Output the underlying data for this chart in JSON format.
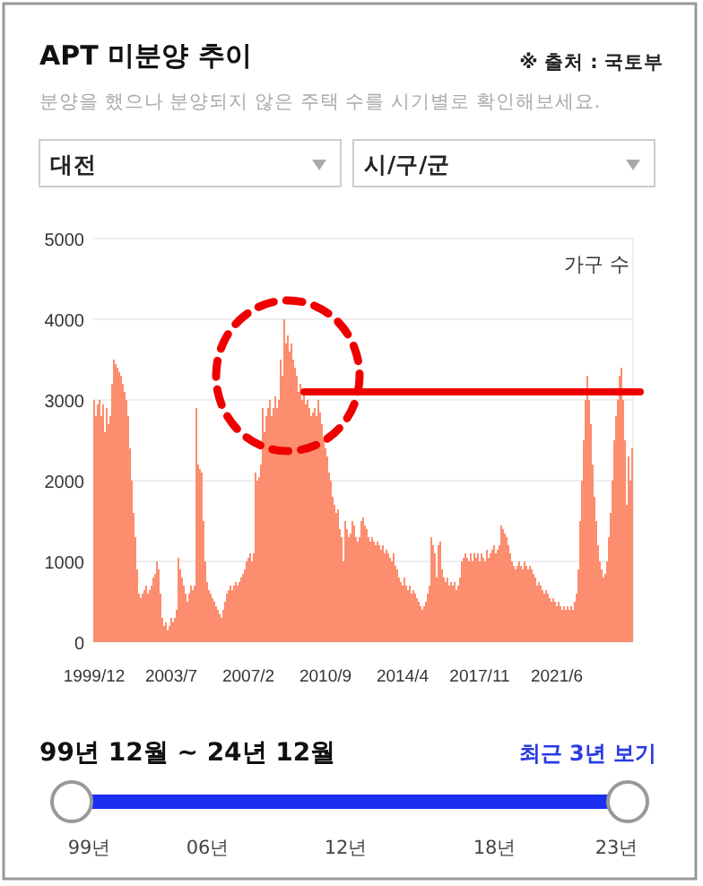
{
  "chart_data": {
    "type": "bar",
    "title": "APT 미분양 추이",
    "subtitle": "분양을 했으나 분양되지 않은 주택 수를 시기별로 확인해보세요.",
    "ylabel": "가구 수",
    "annotations": [
      "※ 출처 : 국토부",
      "대전",
      "시/구/군",
      "99년 12월 ~ 24년 12월",
      "최근 3년 보기",
      "99년",
      "06년",
      "12년",
      "18년",
      "23년"
    ],
    "categories": [
      "1999/12",
      null,
      null,
      null,
      null,
      null,
      null,
      null,
      null,
      null,
      null,
      null,
      null,
      null,
      null,
      null,
      null,
      null,
      null,
      null,
      null,
      null,
      null,
      null,
      null,
      null,
      null,
      null,
      null,
      null,
      null,
      null,
      null,
      null,
      null,
      null,
      null,
      null,
      null,
      null,
      null,
      null,
      null,
      "2003/7",
      null,
      null,
      null,
      null,
      null,
      null,
      null,
      null,
      null,
      null,
      null,
      null,
      null,
      null,
      null,
      null,
      null,
      null,
      null,
      null,
      null,
      null,
      null,
      null,
      null,
      null,
      null,
      null,
      null,
      null,
      null,
      null,
      null,
      null,
      null,
      null,
      null,
      null,
      null,
      null,
      null,
      null,
      "2007/2",
      null,
      null,
      null,
      null,
      null,
      null,
      null,
      null,
      null,
      null,
      null,
      null,
      null,
      null,
      null,
      null,
      null,
      null,
      null,
      null,
      null,
      null,
      null,
      null,
      null,
      null,
      null,
      null,
      null,
      null,
      null,
      null,
      null,
      null,
      null,
      null,
      null,
      null,
      null,
      null,
      null,
      null,
      "2010/9",
      null,
      null,
      null,
      null,
      null,
      null,
      null,
      null,
      null,
      null,
      null,
      null,
      null,
      null,
      null,
      null,
      null,
      null,
      null,
      null,
      null,
      null,
      null,
      null,
      null,
      null,
      null,
      null,
      null,
      null,
      null,
      null,
      null,
      null,
      null,
      null,
      null,
      null,
      null,
      null,
      null,
      null,
      "2014/4",
      null,
      null,
      null,
      null,
      null,
      null,
      null,
      null,
      null,
      null,
      null,
      null,
      null,
      null,
      null,
      null,
      null,
      null,
      null,
      null,
      null,
      null,
      null,
      null,
      null,
      null,
      null,
      null,
      null,
      null,
      null,
      null,
      null,
      null,
      null,
      null,
      null,
      null,
      null,
      null,
      null,
      null,
      "2017/11",
      null,
      null,
      null,
      null,
      null,
      null,
      null,
      null,
      null,
      null,
      null,
      null,
      null,
      null,
      null,
      null,
      null,
      null,
      null,
      null,
      null,
      null,
      null,
      null,
      null,
      null,
      null,
      null,
      null,
      null,
      null,
      null,
      null,
      null,
      null,
      null,
      null,
      null,
      null,
      null,
      null,
      null,
      "2021/6",
      null,
      null,
      null,
      null,
      null,
      null,
      null,
      null,
      null,
      null,
      null,
      null,
      null,
      null,
      null,
      null,
      null,
      null,
      null,
      null,
      null,
      null,
      null,
      null,
      null,
      null,
      null,
      null,
      null,
      null,
      null,
      null,
      null,
      null,
      null,
      null,
      null,
      null,
      null,
      null,
      null,
      null
    ],
    "values": [
      3000,
      2800,
      2950,
      3000,
      2800,
      2950,
      2600,
      2900,
      2700,
      2800,
      3200,
      3500,
      3450,
      3400,
      3350,
      3300,
      3200,
      3100,
      3000,
      2800,
      2400,
      2000,
      1600,
      1300,
      900,
      600,
      550,
      600,
      650,
      700,
      600,
      650,
      700,
      800,
      850,
      1000,
      900,
      600,
      300,
      200,
      250,
      150,
      200,
      300,
      250,
      300,
      400,
      1050,
      900,
      800,
      700,
      600,
      500,
      600,
      700,
      650,
      700,
      2900,
      2200,
      2150,
      2100,
      1500,
      1000,
      750,
      650,
      600,
      550,
      500,
      450,
      400,
      350,
      300,
      400,
      500,
      600,
      650,
      700,
      650,
      700,
      750,
      700,
      750,
      800,
      850,
      900,
      1000,
      1050,
      1100,
      1000,
      1100,
      2100,
      2000,
      2050,
      2200,
      2900,
      2600,
      2800,
      2900,
      3000,
      2800,
      2900,
      3050,
      2900,
      3000,
      3500,
      3300,
      4000,
      3700,
      3800,
      3600,
      3700,
      3500,
      3400,
      3300,
      3100,
      3200,
      3000,
      3100,
      2950,
      3000,
      2900,
      2800,
      2850,
      2900,
      2800,
      3000,
      2850,
      2700,
      2500,
      2400,
      2300,
      2100,
      2000,
      1800,
      1700,
      1600,
      1650,
      1400,
      1300,
      1000,
      1500,
      1400,
      1300,
      1350,
      1500,
      1450,
      1300,
      1250,
      1300,
      1500,
      1550,
      1450,
      1400,
      1300,
      1250,
      1300,
      1250,
      1200,
      1250,
      1200,
      1150,
      1200,
      1100,
      1150,
      1100,
      1050,
      1000,
      1100,
      950,
      900,
      800,
      750,
      700,
      800,
      700,
      650,
      700,
      600,
      650,
      600,
      550,
      500,
      450,
      400,
      450,
      500,
      600,
      700,
      1300,
      1200,
      1100,
      800,
      1200,
      1250,
      900,
      800,
      750,
      800,
      700,
      750,
      700,
      750,
      650,
      700,
      800,
      1000,
      1050,
      1100,
      1050,
      1000,
      1100,
      1000,
      1100,
      1050,
      1100,
      1000,
      1100,
      1050,
      1000,
      1150,
      1050,
      1100,
      1150,
      1200,
      1100,
      1150,
      1200,
      1450,
      1400,
      1350,
      1300,
      1200,
      1100,
      1000,
      950,
      900,
      950,
      1000,
      950,
      900,
      1000,
      950,
      900,
      950,
      900,
      850,
      800,
      700,
      750,
      700,
      650,
      600,
      650,
      600,
      550,
      500,
      550,
      500,
      450,
      500,
      450,
      400,
      450,
      400,
      450,
      400,
      450,
      400,
      500,
      600,
      900,
      1500,
      2000,
      2500,
      3000,
      3300,
      3000,
      2700,
      2200,
      1800,
      1500,
      1200,
      1000,
      900,
      800,
      850,
      1000,
      1300,
      1600,
      2000,
      2500,
      2800,
      3000,
      3300,
      3400,
      3000,
      2500,
      1700,
      2300,
      2000,
      2400
    ],
    "ref_lines": [
      {
        "axis": "y",
        "value": 3100,
        "color": "#ee0000"
      }
    ],
    "color": "#fc8d6e",
    "ylim": [
      0,
      5000
    ],
    "yticks": [
      0,
      1000,
      2000,
      3000,
      4000,
      5000
    ],
    "grid": "y"
  }
}
